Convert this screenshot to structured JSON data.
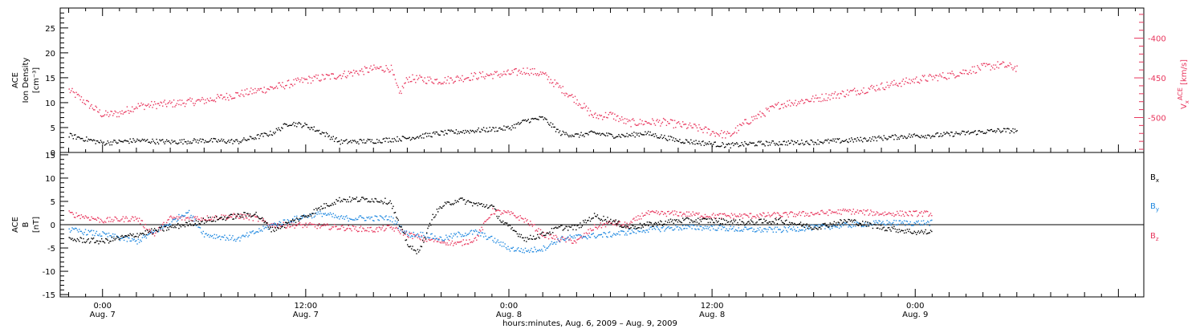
{
  "chart_data": [
    {
      "type": "scatter",
      "panel": "top",
      "ylabel_lines": [
        "ACE",
        "Ion Density",
        "[cm⁻³]"
      ],
      "ylim": [
        0,
        29
      ],
      "yticks": [
        0,
        5,
        10,
        15,
        20,
        25
      ],
      "y2label": "Vₓ ACE [km/s]",
      "y2label_parts": {
        "symbol": "V",
        "sub": "x",
        "sup": "ACE",
        "unit": "[km/s]"
      },
      "y2lim": [
        -544,
        -362
      ],
      "y2ticks": [
        -400,
        -450,
        -500
      ],
      "series": [
        {
          "name": "Ion Density",
          "axis": "left",
          "color": "#000000",
          "points": [
            [
              -2,
              3.5
            ],
            [
              0,
              2
            ],
            [
              2,
              2.5
            ],
            [
              4,
              2.2
            ],
            [
              6,
              2.5
            ],
            [
              8,
              2.3
            ],
            [
              10,
              4
            ],
            [
              11,
              6
            ],
            [
              12,
              5.5
            ],
            [
              13,
              4
            ],
            [
              14,
              2.2
            ],
            [
              16,
              2.4
            ],
            [
              18,
              3
            ],
            [
              20,
              4
            ],
            [
              22,
              4.5
            ],
            [
              24,
              5
            ],
            [
              25,
              6.5
            ],
            [
              26,
              7
            ],
            [
              27,
              4
            ],
            [
              28,
              3.5
            ],
            [
              29,
              4
            ],
            [
              30,
              3.5
            ],
            [
              31,
              3.5
            ],
            [
              32,
              4
            ],
            [
              34,
              2.5
            ],
            [
              36,
              1.8
            ],
            [
              37,
              1.5
            ],
            [
              38,
              1.8
            ],
            [
              40,
              2
            ],
            [
              42,
              2.2
            ],
            [
              44,
              2.5
            ],
            [
              46,
              3
            ],
            [
              48,
              3.5
            ],
            [
              49,
              3.5
            ],
            [
              51,
              4
            ],
            [
              53,
              4.5
            ],
            [
              54,
              4.5
            ]
          ]
        },
        {
          "name": "Vx",
          "axis": "right",
          "color": "#e8365d",
          "points": [
            [
              -2,
              -465
            ],
            [
              0,
              -496
            ],
            [
              1,
              -494
            ],
            [
              2,
              -485
            ],
            [
              4,
              -482
            ],
            [
              6,
              -478
            ],
            [
              8,
              -470
            ],
            [
              10,
              -462
            ],
            [
              12,
              -452
            ],
            [
              14,
              -446
            ],
            [
              16,
              -438
            ],
            [
              17,
              -437
            ],
            [
              17.5,
              -470
            ],
            [
              18,
              -450
            ],
            [
              20,
              -453
            ],
            [
              22,
              -447
            ],
            [
              24,
              -444
            ],
            [
              25,
              -440
            ],
            [
              26,
              -445
            ],
            [
              27,
              -462
            ],
            [
              28,
              -478
            ],
            [
              29,
              -498
            ],
            [
              30,
              -496
            ],
            [
              31,
              -506
            ],
            [
              33,
              -505
            ],
            [
              35,
              -512
            ],
            [
              36,
              -518
            ],
            [
              37,
              -522
            ],
            [
              38,
              -505
            ],
            [
              40,
              -483
            ],
            [
              42,
              -476
            ],
            [
              44,
              -468
            ],
            [
              46,
              -460
            ],
            [
              48,
              -452
            ],
            [
              50,
              -446
            ],
            [
              52,
              -436
            ],
            [
              53,
              -433
            ],
            [
              54,
              -437
            ]
          ]
        }
      ]
    },
    {
      "type": "scatter",
      "panel": "bottom",
      "ylabel_lines": [
        "ACE",
        "B",
        "[nT]"
      ],
      "ylim": [
        -15.5,
        15.5
      ],
      "yticks": [
        -15,
        -10,
        -5,
        0,
        5,
        10,
        15
      ],
      "zero_line": true,
      "xlabel": "hours:minutes, Aug.  6, 2009 – Aug.  9, 2009",
      "xlim": [
        -2.5,
        61.5
      ],
      "xticks": [
        {
          "hour": 0,
          "time": "0:00",
          "date": "Aug. 7"
        },
        {
          "hour": 12,
          "time": "12:00",
          "date": "Aug. 7"
        },
        {
          "hour": 24,
          "time": "0:00",
          "date": "Aug. 8"
        },
        {
          "hour": 36,
          "time": "12:00",
          "date": "Aug. 8"
        },
        {
          "hour": 48,
          "time": "0:00",
          "date": "Aug. 9"
        }
      ],
      "series": [
        {
          "name": "B",
          "sub": "x",
          "color": "#000000",
          "points": [
            [
              -2,
              -3
            ],
            [
              0,
              -3.5
            ],
            [
              2,
              -2
            ],
            [
              4,
              -0.5
            ],
            [
              6,
              1
            ],
            [
              8,
              2
            ],
            [
              9,
              2.5
            ],
            [
              10,
              -1
            ],
            [
              11,
              0.5
            ],
            [
              12,
              2
            ],
            [
              13,
              4
            ],
            [
              14,
              5.5
            ],
            [
              16,
              5.5
            ],
            [
              17,
              5
            ],
            [
              17.5,
              0
            ],
            [
              18,
              -4
            ],
            [
              18.5,
              -6
            ],
            [
              19,
              -3
            ],
            [
              19.5,
              2
            ],
            [
              20,
              4
            ],
            [
              21,
              5.5
            ],
            [
              22,
              4.5
            ],
            [
              23,
              4
            ],
            [
              23.5,
              1
            ],
            [
              24,
              -0.5
            ],
            [
              25,
              -3
            ],
            [
              26,
              -2
            ],
            [
              27,
              -0.5
            ],
            [
              28,
              -0.5
            ],
            [
              29,
              2
            ],
            [
              30,
              1
            ],
            [
              31,
              -0.5
            ],
            [
              32,
              0
            ],
            [
              34,
              1
            ],
            [
              36,
              1
            ],
            [
              38,
              0.5
            ],
            [
              40,
              1
            ],
            [
              42,
              -0.5
            ],
            [
              44,
              1
            ],
            [
              46,
              -0.5
            ],
            [
              48,
              -1.5
            ],
            [
              49,
              -1.5
            ]
          ]
        },
        {
          "name": "B",
          "sub": "y",
          "color": "#1f88e0",
          "points": [
            [
              -2,
              -1
            ],
            [
              0,
              -2
            ],
            [
              2,
              -3.5
            ],
            [
              4,
              0.5
            ],
            [
              5,
              3
            ],
            [
              6,
              -2
            ],
            [
              8,
              -3
            ],
            [
              10,
              0
            ],
            [
              11,
              1
            ],
            [
              12,
              2
            ],
            [
              13,
              2.5
            ],
            [
              14,
              1.5
            ],
            [
              16,
              1.5
            ],
            [
              17,
              1.5
            ],
            [
              18,
              -2
            ],
            [
              19,
              -2
            ],
            [
              20,
              -3
            ],
            [
              21,
              -2
            ],
            [
              22,
              -1.5
            ],
            [
              23,
              -3
            ],
            [
              24,
              -5
            ],
            [
              25,
              -5.5
            ],
            [
              26,
              -5
            ],
            [
              27,
              -3
            ],
            [
              28,
              -2.5
            ],
            [
              30,
              -2
            ],
            [
              32,
              -1
            ],
            [
              34,
              -0.5
            ],
            [
              36,
              -0.5
            ],
            [
              38,
              -1
            ],
            [
              40,
              -1
            ],
            [
              42,
              -0.5
            ],
            [
              44,
              0
            ],
            [
              46,
              0.5
            ],
            [
              48,
              0.5
            ],
            [
              49,
              0.5
            ]
          ]
        },
        {
          "name": "B",
          "sub": "z",
          "color": "#e8365d",
          "points": [
            [
              -2,
              2.5
            ],
            [
              0,
              1
            ],
            [
              2,
              1.5
            ],
            [
              3,
              -2
            ],
            [
              4,
              1.5
            ],
            [
              6,
              1.5
            ],
            [
              8,
              2
            ],
            [
              9,
              1.5
            ],
            [
              10,
              0
            ],
            [
              11,
              0
            ],
            [
              12,
              0
            ],
            [
              14,
              -0.5
            ],
            [
              16,
              -1
            ],
            [
              17,
              -0.5
            ],
            [
              18,
              -2
            ],
            [
              19,
              -3
            ],
            [
              20,
              -3.5
            ],
            [
              21,
              -4
            ],
            [
              22,
              -3
            ],
            [
              23,
              3
            ],
            [
              24,
              2.5
            ],
            [
              25,
              1
            ],
            [
              26,
              -2
            ],
            [
              27,
              -3
            ],
            [
              28,
              -3.5
            ],
            [
              29,
              -0.5
            ],
            [
              30,
              0.5
            ],
            [
              31,
              0
            ],
            [
              32,
              2.5
            ],
            [
              34,
              2.5
            ],
            [
              36,
              2
            ],
            [
              38,
              2
            ],
            [
              40,
              2.2
            ],
            [
              42,
              2.5
            ],
            [
              44,
              3
            ],
            [
              46,
              2.5
            ],
            [
              48,
              2.5
            ],
            [
              49,
              2.5
            ]
          ]
        }
      ]
    }
  ]
}
